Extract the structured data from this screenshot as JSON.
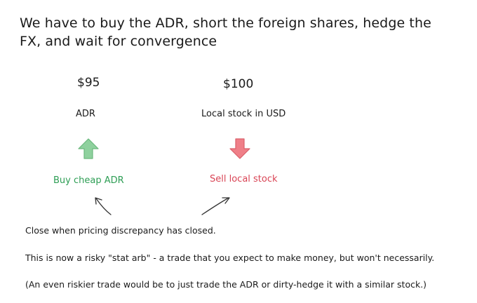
{
  "title": "We have to buy the ADR,  short the foreign shares, hedge the FX, and wait for convergence",
  "left": {
    "price": "$95",
    "label": "ADR",
    "action": "Buy cheap ADR",
    "arrow_icon": "up-arrow-icon",
    "arrow_color": "#8fd19e",
    "action_color": "#2e9e55"
  },
  "right": {
    "price": "$100",
    "label": "Local stock in USD",
    "action": "Sell local stock",
    "arrow_icon": "down-arrow-icon",
    "arrow_color": "#ef7f88",
    "action_color": "#d94455"
  },
  "notes": [
    "Close when pricing discrepancy has closed.",
    "This is now a risky \"stat arb\" - a trade that you expect to make money, but won't necessarily.",
    "(An even riskier trade would be to just trade the ADR or dirty-hedge it with a similar stock.)"
  ]
}
